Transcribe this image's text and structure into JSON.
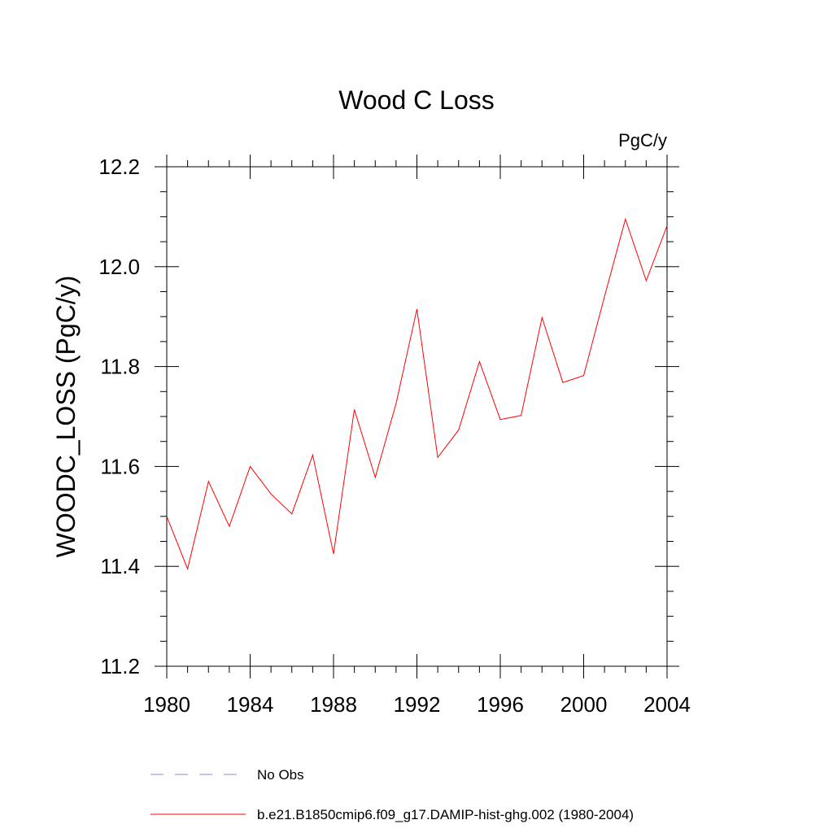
{
  "chart_data": {
    "type": "line",
    "title": "Wood C Loss",
    "units": "PgC/y",
    "ylabel": "WOODC_LOSS  (PgC/y)",
    "xlabel": "",
    "xlim": [
      1980,
      2004
    ],
    "ylim": [
      11.2,
      12.2
    ],
    "x_ticks": [
      1980,
      1984,
      1988,
      1992,
      1996,
      2000,
      2004
    ],
    "x_tick_labels": [
      "1980",
      "1984",
      "1988",
      "1992",
      "1996",
      "2000",
      "2004"
    ],
    "y_ticks": [
      11.2,
      11.4,
      11.6,
      11.8,
      12.0,
      12.2
    ],
    "y_tick_labels": [
      "11.2",
      "11.4",
      "11.6",
      "11.8",
      "12.0",
      "12.2"
    ],
    "grid": false,
    "legend_position": "bottom",
    "series": [
      {
        "name": "b.e21.B1850cmip6.f09_g17.DAMIP-hist-ghg.002 (1980-2004)",
        "color": "#ff0000",
        "style": "solid",
        "x": [
          1980,
          1981,
          1982,
          1983,
          1984,
          1985,
          1986,
          1987,
          1988,
          1989,
          1990,
          1991,
          1992,
          1993,
          1994,
          1995,
          1996,
          1997,
          1998,
          1999,
          2000,
          2001,
          2002,
          2003,
          2004
        ],
        "values": [
          11.5,
          11.395,
          11.57,
          11.48,
          11.6,
          11.545,
          11.505,
          11.623,
          11.425,
          11.714,
          11.578,
          11.726,
          11.915,
          11.618,
          11.673,
          11.81,
          11.694,
          11.702,
          11.898,
          11.768,
          11.782,
          11.94,
          12.095,
          11.972,
          12.082
        ]
      }
    ],
    "legend": [
      {
        "name": "No Obs",
        "color": "#8a8ad0",
        "style": "dashed"
      },
      {
        "name": "b.e21.B1850cmip6.f09_g17.DAMIP-hist-ghg.002 (1980-2004)",
        "color": "#ff0000",
        "style": "solid"
      }
    ]
  }
}
